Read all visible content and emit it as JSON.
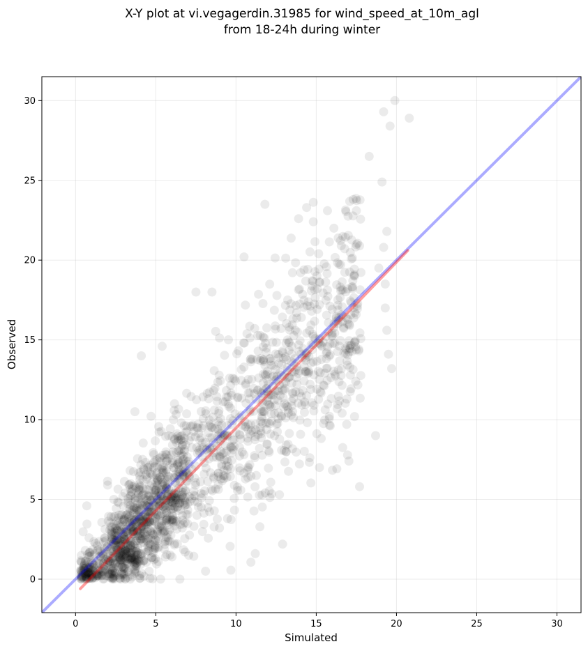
{
  "chart_data": {
    "type": "scatter",
    "title": [
      "X-Y plot at vi.vegagerdin.31985 for wind_speed_at_10m_agl",
      "from 18-24h during winter"
    ],
    "xlabel": "Simulated",
    "ylabel": "Observed",
    "xlim": [
      -2.1,
      31.5
    ],
    "ylim": [
      -2.1,
      31.5
    ],
    "xticks": [
      0,
      5,
      10,
      15,
      20,
      25,
      30
    ],
    "yticks": [
      0,
      5,
      10,
      15,
      20,
      25,
      30
    ],
    "grid": true,
    "point_color": "#000000",
    "point_alpha": 0.08,
    "approx_point_count": 1800,
    "highlight_points": [
      {
        "x": 19.9,
        "y": 30.0
      },
      {
        "x": 20.8,
        "y": 28.9
      },
      {
        "x": 19.6,
        "y": 28.4
      },
      {
        "x": 19.2,
        "y": 29.3
      },
      {
        "x": 18.3,
        "y": 26.5
      },
      {
        "x": 19.1,
        "y": 24.9
      },
      {
        "x": 11.8,
        "y": 23.5
      },
      {
        "x": 14.4,
        "y": 23.3
      },
      {
        "x": 15.7,
        "y": 23.1
      },
      {
        "x": 17.3,
        "y": 23.8
      },
      {
        "x": 17.5,
        "y": 23.1
      },
      {
        "x": 13.9,
        "y": 22.6
      },
      {
        "x": 16.1,
        "y": 22.0
      },
      {
        "x": 19.4,
        "y": 21.8
      },
      {
        "x": 10.5,
        "y": 20.2
      },
      {
        "x": 17.7,
        "y": 20.9
      },
      {
        "x": 19.2,
        "y": 20.8
      },
      {
        "x": 4.1,
        "y": 14.0
      },
      {
        "x": 5.4,
        "y": 14.6
      },
      {
        "x": 7.5,
        "y": 18.0
      },
      {
        "x": 8.5,
        "y": 18.0
      },
      {
        "x": 17.7,
        "y": 5.8
      },
      {
        "x": 12.9,
        "y": 2.2
      },
      {
        "x": 11.2,
        "y": 1.6
      },
      {
        "x": 18.7,
        "y": 9.0
      },
      {
        "x": 19.7,
        "y": 13.2
      },
      {
        "x": 19.5,
        "y": 14.1
      },
      {
        "x": 19.4,
        "y": 15.6
      },
      {
        "x": 19.3,
        "y": 17.0
      },
      {
        "x": 19.3,
        "y": 18.5
      },
      {
        "x": 18.9,
        "y": 19.5
      },
      {
        "x": 0.7,
        "y": 4.6
      },
      {
        "x": 2.0,
        "y": 5.9
      },
      {
        "x": 3.7,
        "y": 10.5
      },
      {
        "x": 8.1,
        "y": 0.5
      },
      {
        "x": 6.5,
        "y": 0.0
      },
      {
        "x": 5.3,
        "y": 0.0
      },
      {
        "x": 15.2,
        "y": 7.0
      },
      {
        "x": 16.9,
        "y": 9.7
      }
    ],
    "lines": [
      {
        "color": "#0000ff",
        "alpha": 0.33,
        "points": [
          [
            -2.1,
            -2.1
          ],
          [
            31.5,
            31.5
          ]
        ]
      },
      {
        "color": "#ff0000",
        "alpha": 0.38,
        "points": [
          [
            0.3,
            -0.6
          ],
          [
            20.7,
            20.6
          ]
        ]
      }
    ]
  }
}
